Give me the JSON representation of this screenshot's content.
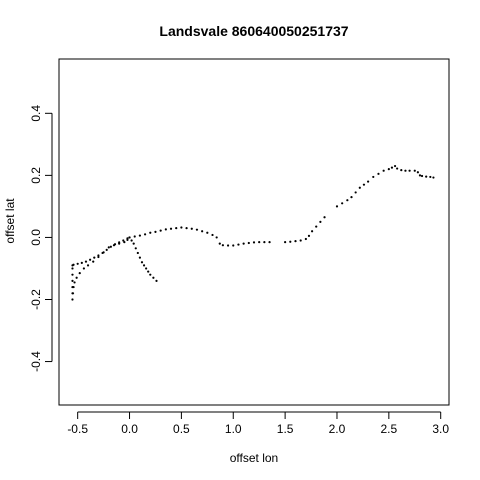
{
  "chart_data": {
    "type": "scatter",
    "title": "Landsvale 860640050251737",
    "xlabel": "offset lon",
    "ylabel": "offset lat",
    "xlim": [
      -0.68,
      3.08
    ],
    "ylim": [
      -0.54,
      0.575
    ],
    "xticks": [
      -0.5,
      0.0,
      0.5,
      1.0,
      1.5,
      2.0,
      2.5,
      3.0
    ],
    "xtick_labels": [
      "-0.5",
      "0.0",
      "0.5",
      "1.0",
      "1.5",
      "2.0",
      "2.5",
      "3.0"
    ],
    "yticks": [
      -0.4,
      -0.2,
      0.0,
      0.2,
      0.4
    ],
    "ytick_labels": [
      "-0.4",
      "-0.2",
      "0.0",
      "0.2",
      "0.4"
    ],
    "grid": false,
    "legend": "none",
    "point_color": "#000000",
    "series": [
      {
        "points": [
          [
            0.0,
            0.0
          ],
          [
            0.02,
            -0.01
          ],
          [
            0.04,
            -0.02
          ],
          [
            0.06,
            -0.035
          ],
          [
            0.08,
            -0.05
          ],
          [
            0.1,
            -0.065
          ],
          [
            0.12,
            -0.08
          ],
          [
            0.14,
            -0.09
          ],
          [
            0.16,
            -0.1
          ],
          [
            0.18,
            -0.11
          ],
          [
            0.2,
            -0.12
          ],
          [
            0.23,
            -0.13
          ],
          [
            0.26,
            -0.14
          ],
          [
            0.0,
            0.0
          ],
          [
            0.05,
            0.003
          ],
          [
            0.1,
            0.006
          ],
          [
            0.15,
            0.01
          ],
          [
            0.2,
            0.015
          ],
          [
            0.25,
            0.018
          ],
          [
            0.3,
            0.022
          ],
          [
            0.35,
            0.026
          ],
          [
            0.4,
            0.028
          ],
          [
            0.45,
            0.03
          ],
          [
            0.5,
            0.032
          ],
          [
            0.55,
            0.03
          ],
          [
            0.6,
            0.028
          ],
          [
            0.65,
            0.025
          ],
          [
            0.7,
            0.02
          ],
          [
            0.75,
            0.015
          ],
          [
            0.8,
            0.008
          ],
          [
            0.84,
            0.0
          ],
          [
            0.87,
            -0.02
          ],
          [
            0.9,
            -0.025
          ],
          [
            0.95,
            -0.026
          ],
          [
            1.0,
            -0.026
          ],
          [
            1.05,
            -0.023
          ],
          [
            1.1,
            -0.02
          ],
          [
            1.15,
            -0.018
          ],
          [
            1.2,
            -0.016
          ],
          [
            1.25,
            -0.015
          ],
          [
            1.3,
            -0.015
          ],
          [
            1.35,
            -0.015
          ],
          [
            1.5,
            -0.015
          ],
          [
            1.55,
            -0.014
          ],
          [
            1.6,
            -0.012
          ],
          [
            1.65,
            -0.01
          ],
          [
            1.7,
            -0.005
          ],
          [
            1.73,
            0.005
          ],
          [
            1.76,
            0.02
          ],
          [
            1.8,
            0.035
          ],
          [
            1.84,
            0.05
          ],
          [
            1.88,
            0.065
          ],
          [
            2.0,
            0.1
          ],
          [
            2.05,
            0.11
          ],
          [
            2.1,
            0.12
          ],
          [
            2.14,
            0.13
          ],
          [
            2.18,
            0.145
          ],
          [
            2.22,
            0.16
          ],
          [
            2.26,
            0.17
          ],
          [
            2.3,
            0.18
          ],
          [
            2.35,
            0.195
          ],
          [
            2.4,
            0.205
          ],
          [
            2.45,
            0.215
          ],
          [
            2.5,
            0.22
          ],
          [
            2.53,
            0.225
          ],
          [
            2.56,
            0.23
          ],
          [
            2.58,
            0.222
          ],
          [
            2.62,
            0.217
          ],
          [
            2.66,
            0.215
          ],
          [
            2.7,
            0.215
          ],
          [
            2.75,
            0.215
          ],
          [
            2.78,
            0.21
          ],
          [
            2.8,
            0.2
          ],
          [
            2.82,
            0.198
          ],
          [
            2.86,
            0.196
          ],
          [
            2.9,
            0.195
          ],
          [
            2.93,
            0.193
          ],
          [
            -0.02,
            -0.003
          ],
          [
            -0.06,
            -0.01
          ],
          [
            -0.1,
            -0.016
          ],
          [
            -0.14,
            -0.022
          ],
          [
            -0.18,
            -0.03
          ],
          [
            -0.22,
            -0.04
          ],
          [
            -0.26,
            -0.05
          ],
          [
            -0.3,
            -0.058
          ],
          [
            -0.34,
            -0.065
          ],
          [
            -0.38,
            -0.072
          ],
          [
            -0.42,
            -0.078
          ],
          [
            -0.46,
            -0.082
          ],
          [
            -0.5,
            -0.085
          ],
          [
            -0.54,
            -0.088
          ],
          [
            -0.55,
            -0.09
          ],
          [
            -0.02,
            -0.008
          ],
          [
            -0.05,
            -0.015
          ],
          [
            -0.1,
            -0.02
          ],
          [
            -0.15,
            -0.025
          ],
          [
            -0.2,
            -0.032
          ],
          [
            -0.25,
            -0.048
          ],
          [
            -0.3,
            -0.063
          ],
          [
            -0.35,
            -0.078
          ],
          [
            -0.4,
            -0.09
          ],
          [
            -0.44,
            -0.1
          ],
          [
            -0.48,
            -0.115
          ],
          [
            -0.51,
            -0.13
          ],
          [
            -0.53,
            -0.145
          ],
          [
            -0.54,
            -0.16
          ],
          [
            -0.545,
            -0.18
          ],
          [
            -0.55,
            -0.2
          ],
          [
            -0.55,
            -0.1
          ],
          [
            -0.55,
            -0.12
          ],
          [
            -0.55,
            -0.14
          ],
          [
            -0.55,
            -0.16
          ],
          [
            -0.55,
            -0.18
          ]
        ]
      }
    ]
  }
}
